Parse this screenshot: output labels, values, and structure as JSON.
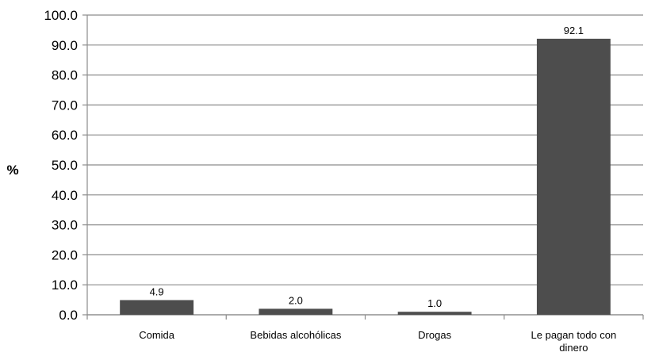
{
  "chart_data": {
    "type": "bar",
    "categories": [
      [
        "Comida"
      ],
      [
        "Bebidas alcohólicas"
      ],
      [
        "Drogas"
      ],
      [
        "Le pagan todo con",
        "dinero"
      ]
    ],
    "values": [
      4.9,
      2.0,
      1.0,
      92.1
    ],
    "value_labels": [
      "4.9",
      "2.0",
      "1.0",
      "92.1"
    ],
    "ylabel": "%",
    "ylim": [
      0,
      100
    ],
    "yticks": [
      "0.0",
      "10.0",
      "20.0",
      "30.0",
      "40.0",
      "50.0",
      "60.0",
      "70.0",
      "80.0",
      "90.0",
      "100.0"
    ],
    "grid": true,
    "bar_color": "#4d4d4d",
    "grid_color": "#8c8c8c"
  }
}
